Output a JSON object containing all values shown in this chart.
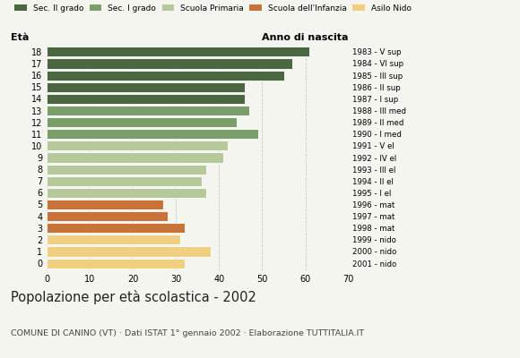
{
  "ages": [
    18,
    17,
    16,
    15,
    14,
    13,
    12,
    11,
    10,
    9,
    8,
    7,
    6,
    5,
    4,
    3,
    2,
    1,
    0
  ],
  "values": [
    61,
    57,
    55,
    46,
    46,
    47,
    44,
    49,
    42,
    41,
    37,
    36,
    37,
    27,
    28,
    32,
    31,
    38,
    32
  ],
  "anno_nascita": [
    "1983 - V sup",
    "1984 - VI sup",
    "1985 - III sup",
    "1986 - II sup",
    "1987 - I sup",
    "1988 - III med",
    "1989 - II med",
    "1990 - I med",
    "1991 - V el",
    "1992 - IV el",
    "1993 - III el",
    "1994 - II el",
    "1995 - I el",
    "1996 - mat",
    "1997 - mat",
    "1998 - mat",
    "1999 - nido",
    "2000 - nido",
    "2001 - nido"
  ],
  "colors": [
    "#4a6741",
    "#4a6741",
    "#4a6741",
    "#4a6741",
    "#4a6741",
    "#7a9e6a",
    "#7a9e6a",
    "#7a9e6a",
    "#b5c99a",
    "#b5c99a",
    "#b5c99a",
    "#b5c99a",
    "#b5c99a",
    "#c8733a",
    "#c8733a",
    "#c8733a",
    "#f0d080",
    "#f0d080",
    "#f0d080"
  ],
  "legend_labels": [
    "Sec. II grado",
    "Sec. I grado",
    "Scuola Primaria",
    "Scuola dell'Infanzia",
    "Asilo Nido"
  ],
  "legend_colors": [
    "#4a6741",
    "#7a9e6a",
    "#b5c99a",
    "#c8733a",
    "#f0d080"
  ],
  "title": "Popolazione per età scolastica - 2002",
  "subtitle": "COMUNE DI CANINO (VT) · Dati ISTAT 1° gennaio 2002 · Elaborazione TUTTITALIA.IT",
  "xlabel_eta": "Età",
  "xlabel_anno": "Anno di nascita",
  "xlim": [
    0,
    70
  ],
  "xticks": [
    0,
    10,
    20,
    30,
    40,
    50,
    60,
    70
  ],
  "background_color": "#f5f5f0",
  "bar_edge_color": "white",
  "grid_color": "#c8c8c8"
}
